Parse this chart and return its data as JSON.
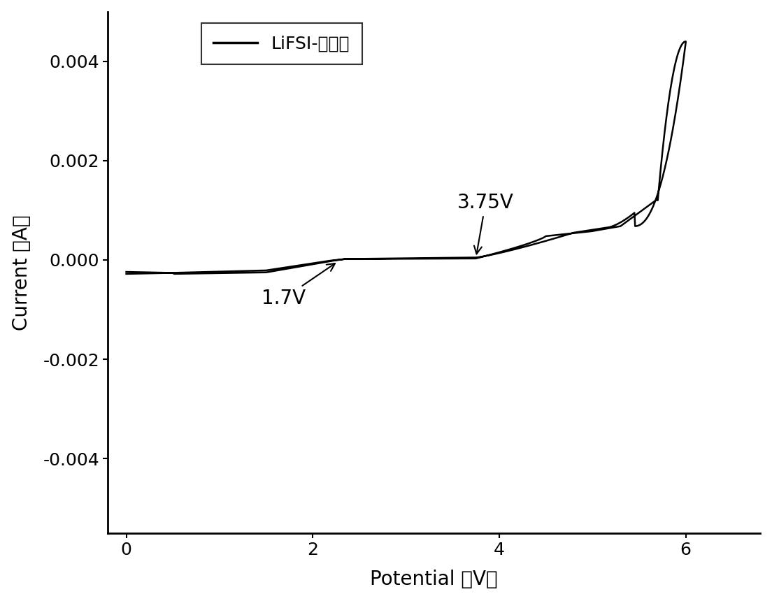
{
  "xlabel": "Potential （V）",
  "ylabel": "Current （A）",
  "legend_label": "LiFSI-正戊醚",
  "xlim": [
    -0.2,
    6.8
  ],
  "ylim": [
    -0.0055,
    0.005
  ],
  "xticks": [
    0,
    2,
    4,
    6
  ],
  "yticks": [
    -0.004,
    -0.002,
    0.0,
    0.002,
    0.004
  ],
  "line_color": "#000000",
  "background_color": "#ffffff",
  "annotation_375": "3.75V",
  "annotation_17": "1.7V",
  "label_fontsize": 20,
  "tick_fontsize": 18,
  "legend_fontsize": 18
}
